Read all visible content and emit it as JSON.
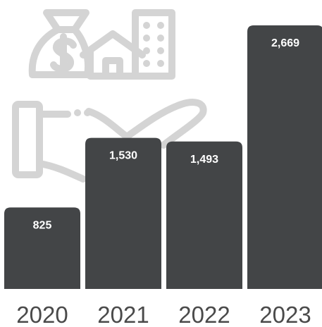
{
  "chart_data": {
    "type": "bar",
    "categories": [
      "2020",
      "2021",
      "2022",
      "2023"
    ],
    "values": [
      825,
      1530,
      1493,
      2669
    ],
    "value_labels": [
      "825",
      "1,530",
      "1,493",
      "2,669"
    ],
    "ylim": [
      0,
      2669
    ],
    "grid": false,
    "legend": "none",
    "bar_color": "#434547",
    "value_label_color": "#ffffff",
    "category_label_color": "#4a4a4a",
    "background_icon_color": "#d4d4d4"
  },
  "background_icons": [
    "money-bag-icon",
    "house-icon",
    "building-icon",
    "hand-icon"
  ]
}
